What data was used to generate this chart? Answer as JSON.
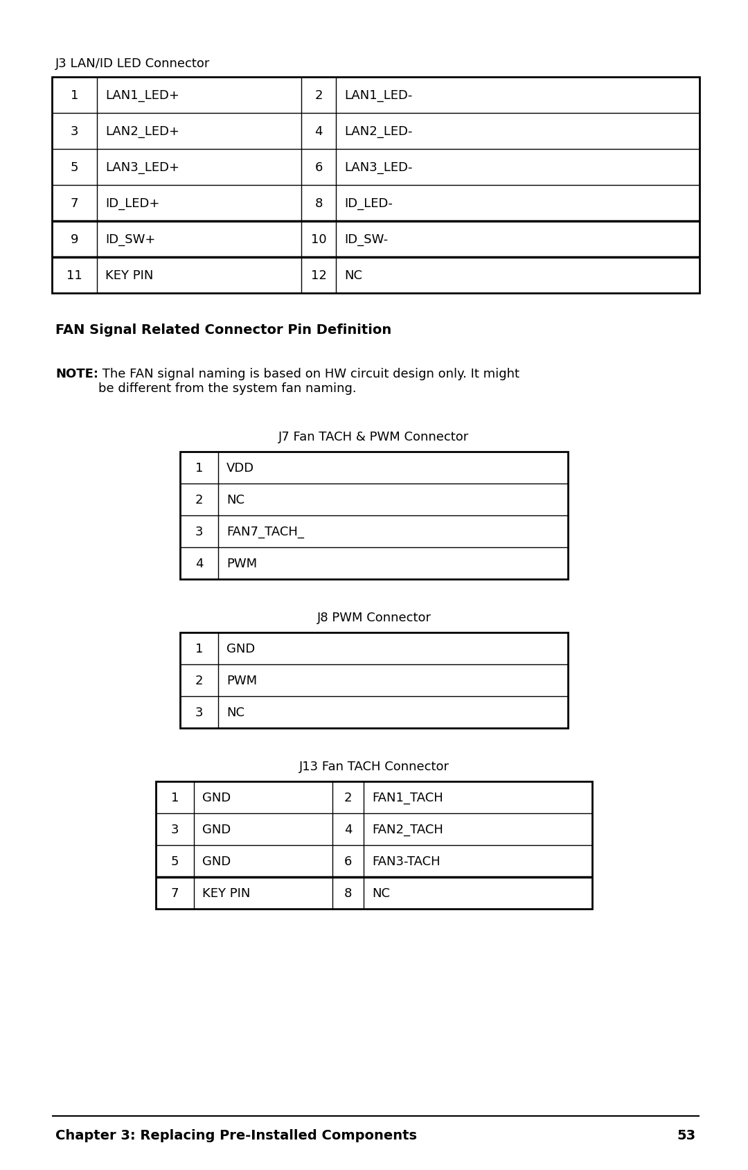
{
  "bg_color": "#ffffff",
  "text_color": "#000000",
  "j3_title": "J3 LAN/ID LED Connector",
  "j3_rows": [
    [
      "1",
      "LAN1_LED+",
      "2",
      "LAN1_LED-"
    ],
    [
      "3",
      "LAN2_LED+",
      "4",
      "LAN2_LED-"
    ],
    [
      "5",
      "LAN3_LED+",
      "6",
      "LAN3_LED-"
    ],
    [
      "7",
      "ID_LED+",
      "8",
      "ID_LED-"
    ],
    [
      "9",
      "ID_SW+",
      "10",
      "ID_SW-"
    ],
    [
      "11",
      "KEY PIN",
      "12",
      "NC"
    ]
  ],
  "j3_thick_rows": [
    4,
    5
  ],
  "section_title": "FAN Signal Related Connector Pin Definition",
  "note_bold": "NOTE:",
  "note_text": " The FAN signal naming is based on HW circuit design only. It might\nbe different from the system fan naming.",
  "j7_title": "J7 Fan TACH & PWM Connector",
  "j7_rows": [
    [
      "1",
      "VDD"
    ],
    [
      "2",
      "NC"
    ],
    [
      "3",
      "FAN7_TACH_"
    ],
    [
      "4",
      "PWM"
    ]
  ],
  "j8_title": "J8 PWM Connector",
  "j8_rows": [
    [
      "1",
      "GND"
    ],
    [
      "2",
      "PWM"
    ],
    [
      "3",
      "NC"
    ]
  ],
  "j13_title": "J13 Fan TACH Connector",
  "j13_rows": [
    [
      "1",
      "GND",
      "2",
      "FAN1_TACH"
    ],
    [
      "3",
      "GND",
      "4",
      "FAN2_TACH"
    ],
    [
      "5",
      "GND",
      "6",
      "FAN3-TACH"
    ],
    [
      "7",
      "KEY PIN",
      "8",
      "NC"
    ]
  ],
  "j13_thick_rows": [
    3
  ],
  "footer_text": "Chapter 3: Replacing Pre-Installed Components",
  "footer_page": "53"
}
